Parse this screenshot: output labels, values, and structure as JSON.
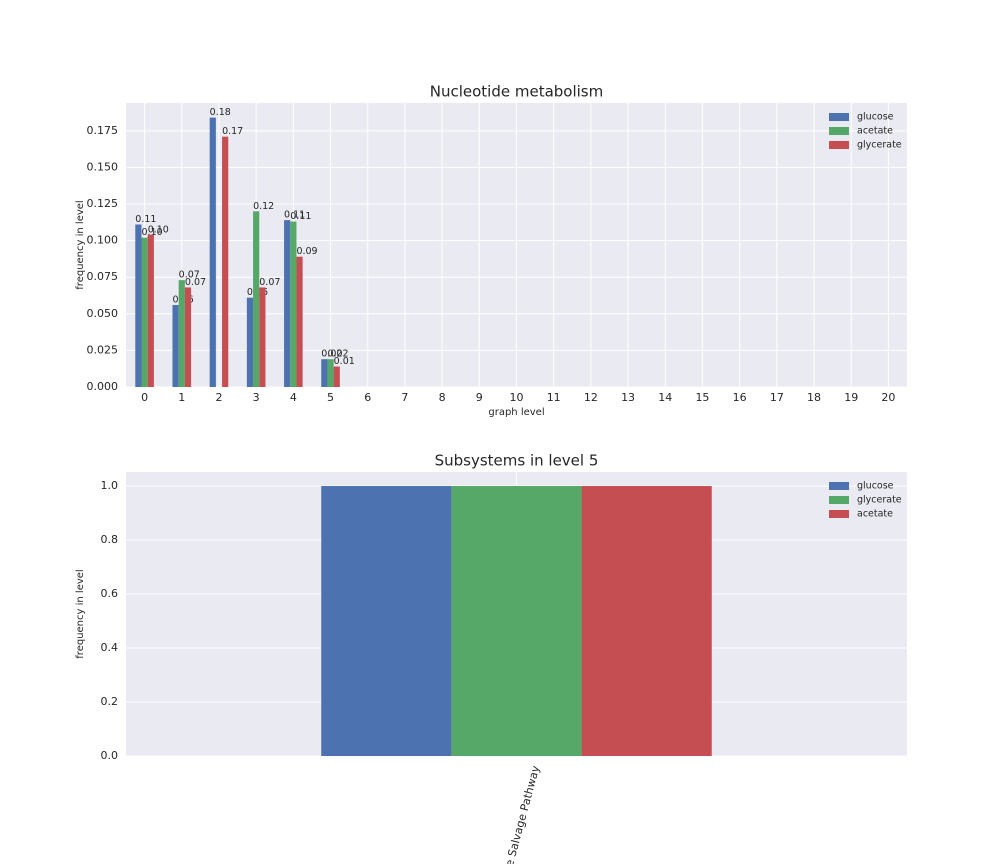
{
  "chart_data": [
    {
      "type": "bar",
      "title": "Nucleotide metabolism",
      "xlabel": "graph level",
      "ylabel": "frequency in level",
      "categories": [
        0,
        1,
        2,
        3,
        4,
        5,
        6,
        7,
        8,
        9,
        10,
        11,
        12,
        13,
        14,
        15,
        16,
        17,
        18,
        19,
        20
      ],
      "series": [
        {
          "name": "glucose",
          "color": "#4c72b0",
          "values": [
            0.111,
            0.056,
            0.184,
            0.061,
            0.114,
            0.019,
            null,
            null,
            null,
            null,
            null,
            null,
            null,
            null,
            null,
            null,
            null,
            null,
            null,
            null,
            null
          ],
          "value_labels": [
            "0.11",
            "0.06",
            "0.18",
            "0.06",
            "0.11",
            "0.02",
            null,
            null,
            null,
            null,
            null,
            null,
            null,
            null,
            null,
            null,
            null,
            null,
            null,
            null,
            null
          ]
        },
        {
          "name": "acetate",
          "color": "#55a868",
          "values": [
            0.102,
            0.073,
            null,
            0.12,
            0.113,
            0.019,
            null,
            null,
            null,
            null,
            null,
            null,
            null,
            null,
            null,
            null,
            null,
            null,
            null,
            null,
            null
          ],
          "value_labels": [
            "0.10",
            "0.07",
            null,
            "0.12",
            "0.11",
            "0.02",
            null,
            null,
            null,
            null,
            null,
            null,
            null,
            null,
            null,
            null,
            null,
            null,
            null,
            null,
            null
          ]
        },
        {
          "name": "glycerate",
          "color": "#c44e52",
          "values": [
            0.104,
            0.068,
            0.171,
            0.068,
            0.089,
            0.014,
            null,
            null,
            null,
            null,
            null,
            null,
            null,
            null,
            null,
            null,
            null,
            null,
            null,
            null,
            null
          ],
          "value_labels": [
            "0.10",
            "0.07",
            "0.17",
            "0.07",
            "0.09",
            "0.01",
            null,
            null,
            null,
            null,
            null,
            null,
            null,
            null,
            null,
            null,
            null,
            null,
            null,
            null,
            null
          ]
        }
      ],
      "ylim": [
        0,
        0.194
      ],
      "yticks": [
        {
          "value": 0,
          "label": "0.000"
        },
        {
          "value": 0.025,
          "label": "0.025"
        },
        {
          "value": 0.05,
          "label": "0.050"
        },
        {
          "value": 0.075,
          "label": "0.075"
        },
        {
          "value": 0.1,
          "label": "0.100"
        },
        {
          "value": 0.125,
          "label": "0.125"
        },
        {
          "value": 0.15,
          "label": "0.150"
        },
        {
          "value": 0.175,
          "label": "0.175"
        }
      ],
      "grid": true,
      "legend": "upper right"
    },
    {
      "type": "bar",
      "title": "Subsystems in level 5",
      "ylabel": "frequency in level",
      "categories": [
        "e Salvage Pathway"
      ],
      "series": [
        {
          "name": "glucose",
          "color": "#4c72b0",
          "values": [
            1.0
          ]
        },
        {
          "name": "glycerate",
          "color": "#55a868",
          "values": [
            1.0
          ]
        },
        {
          "name": "acetate",
          "color": "#c44e52",
          "values": [
            1.0
          ]
        }
      ],
      "ylim": [
        0,
        1.052
      ],
      "yticks": [
        {
          "value": 0,
          "label": "0.0"
        },
        {
          "value": 0.2,
          "label": "0.2"
        },
        {
          "value": 0.4,
          "label": "0.4"
        },
        {
          "value": 0.6,
          "label": "0.6"
        },
        {
          "value": 0.8,
          "label": "0.8"
        },
        {
          "value": 1.0,
          "label": "1.0"
        }
      ],
      "grid": true,
      "legend": "upper right",
      "xtick_rotation": true
    }
  ]
}
